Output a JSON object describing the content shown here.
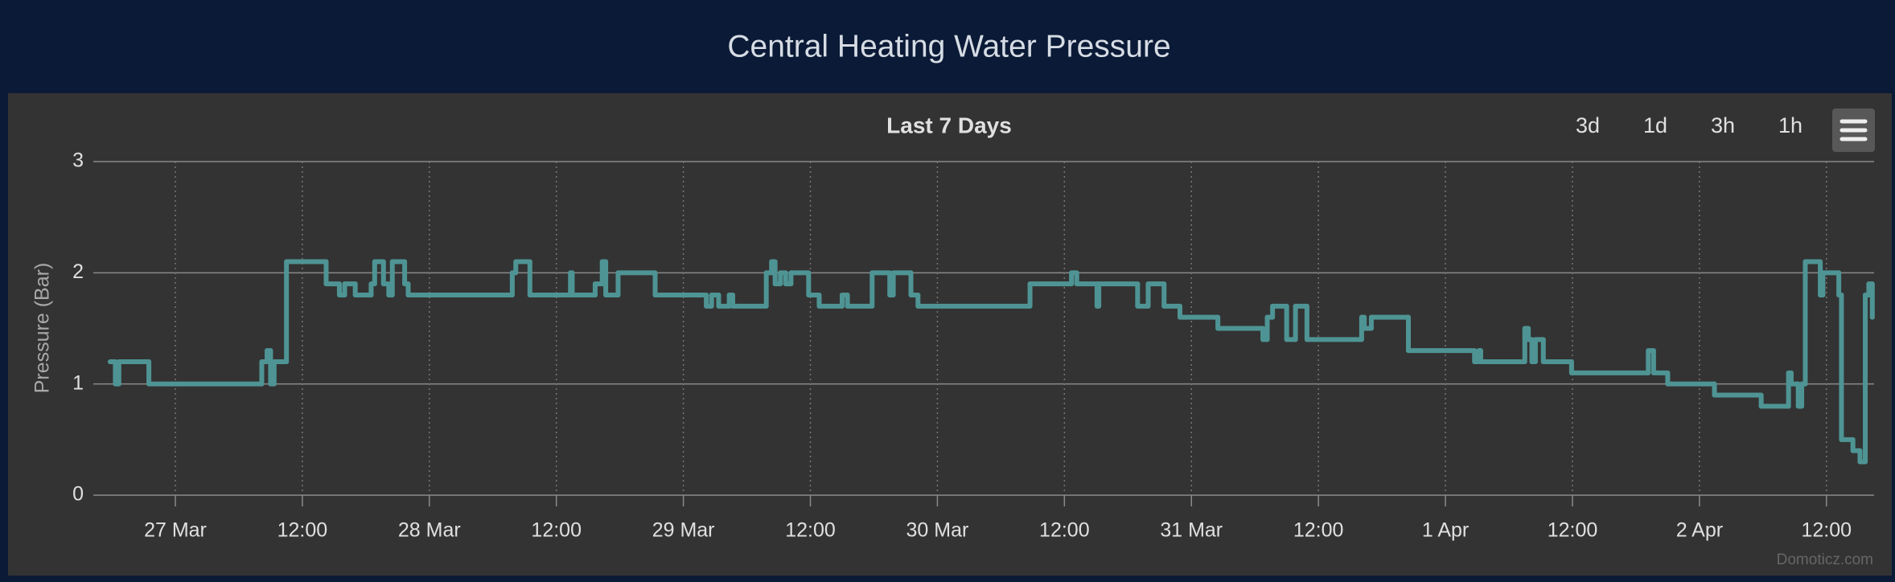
{
  "page_title": "Central Heating Water Pressure",
  "buttons": [
    "3d",
    "1d",
    "3h",
    "1h"
  ],
  "credits": "Domoticz.com",
  "chart_data": {
    "type": "line",
    "step": true,
    "title": "Last 7 Days",
    "ylabel": "Pressure (Bar)",
    "color": "#4f9494",
    "x": [
      "03-26 17:50",
      "03-26 18:20",
      "03-26 18:40",
      "03-26 21:30",
      "03-27 08:10",
      "03-27 08:40",
      "03-27 09:00",
      "03-27 09:20",
      "03-27 10:30",
      "03-27 14:15",
      "03-27 15:30",
      "03-27 16:00",
      "03-27 17:00",
      "03-27 18:30",
      "03-27 18:50",
      "03-27 19:40",
      "03-27 20:10",
      "03-27 20:30",
      "03-27 21:40",
      "03-27 22:00",
      "03-28 07:50",
      "03-28 08:10",
      "03-28 09:30",
      "03-28 13:20",
      "03-28 13:30",
      "03-28 15:40",
      "03-28 16:20",
      "03-28 16:40",
      "03-28 17:50",
      "03-28 21:20",
      "03-29 02:10",
      "03-29 02:40",
      "03-29 03:20",
      "03-29 04:20",
      "03-29 04:40",
      "03-29 07:50",
      "03-29 08:20",
      "03-29 08:40",
      "03-29 09:10",
      "03-29 09:40",
      "03-29 10:10",
      "03-29 11:50",
      "03-29 12:50",
      "03-29 15:00",
      "03-29 15:30",
      "03-29 17:50",
      "03-29 19:30",
      "03-29 19:50",
      "03-29 21:30",
      "03-29 22:10",
      "03-30 08:45",
      "03-30 12:40",
      "03-30 13:10",
      "03-30 15:05",
      "03-30 15:15",
      "03-30 18:55",
      "03-30 19:55",
      "03-30 21:25",
      "03-30 22:55",
      "03-31 02:30",
      "03-31 06:45",
      "03-31 07:10",
      "03-31 07:40",
      "03-31 09:00",
      "03-31 09:50",
      "03-31 10:55",
      "03-31 16:05",
      "03-31 16:20",
      "03-31 17:00",
      "03-31 20:30",
      "04-01 02:45",
      "04-01 03:10",
      "04-01 03:20",
      "04-01 07:30",
      "04-01 07:50",
      "04-01 08:10",
      "04-01 08:30",
      "04-01 09:15",
      "04-01 11:55",
      "04-01 19:10",
      "04-01 19:40",
      "04-01 21:00",
      "04-02 01:25",
      "04-02 05:50",
      "04-02 08:25",
      "04-02 08:40",
      "04-02 09:20",
      "04-02 09:40",
      "04-02 10:00",
      "04-02 11:25",
      "04-02 11:40",
      "04-02 13:10",
      "04-02 13:25",
      "04-02 14:30",
      "04-02 15:10",
      "04-02 15:40",
      "04-02 16:00",
      "04-02 16:20"
    ],
    "values": [
      1.2,
      1.0,
      1.2,
      1.0,
      1.2,
      1.3,
      1.0,
      1.2,
      2.1,
      1.9,
      1.8,
      1.9,
      1.8,
      1.9,
      2.1,
      1.9,
      1.8,
      2.1,
      1.9,
      1.8,
      2.0,
      2.1,
      1.8,
      2.0,
      1.8,
      1.9,
      2.1,
      1.8,
      2.0,
      1.8,
      1.7,
      1.8,
      1.7,
      1.8,
      1.7,
      2.0,
      2.1,
      1.9,
      2.0,
      1.9,
      2.0,
      1.8,
      1.7,
      1.8,
      1.7,
      2.0,
      1.8,
      2.0,
      1.8,
      1.7,
      1.9,
      2.0,
      1.9,
      1.7,
      1.9,
      1.7,
      1.9,
      1.7,
      1.6,
      1.5,
      1.4,
      1.6,
      1.7,
      1.4,
      1.7,
      1.4,
      1.6,
      1.5,
      1.6,
      1.3,
      1.2,
      1.3,
      1.2,
      1.5,
      1.4,
      1.2,
      1.4,
      1.2,
      1.1,
      1.3,
      1.1,
      1.0,
      0.9,
      0.8,
      1.1,
      1.0,
      0.8,
      1.0,
      2.1,
      1.8,
      2.0,
      1.8,
      0.5,
      0.4,
      0.3,
      1.8,
      1.9,
      1.6
    ],
    "xlim": [
      "03-26 16:15",
      "04-02 16:30"
    ],
    "xticks": [
      {
        "value": "03-27 00:00",
        "label": "27 Mar"
      },
      {
        "value": "03-27 12:00",
        "label": "12:00"
      },
      {
        "value": "03-28 00:00",
        "label": "28 Mar"
      },
      {
        "value": "03-28 12:00",
        "label": "12:00"
      },
      {
        "value": "03-29 00:00",
        "label": "29 Mar"
      },
      {
        "value": "03-29 12:00",
        "label": "12:00"
      },
      {
        "value": "03-30 00:00",
        "label": "30 Mar"
      },
      {
        "value": "03-30 12:00",
        "label": "12:00"
      },
      {
        "value": "03-31 00:00",
        "label": "31 Mar"
      },
      {
        "value": "03-31 12:00",
        "label": "12:00"
      },
      {
        "value": "04-01 00:00",
        "label": "1 Apr"
      },
      {
        "value": "04-01 12:00",
        "label": "12:00"
      },
      {
        "value": "04-02 00:00",
        "label": "2 Apr"
      },
      {
        "value": "04-02 12:00",
        "label": "12:00"
      }
    ],
    "ylim": [
      0,
      3
    ],
    "yticks": [
      0,
      1,
      2,
      3
    ],
    "xgrid": true,
    "ygrid": true
  }
}
